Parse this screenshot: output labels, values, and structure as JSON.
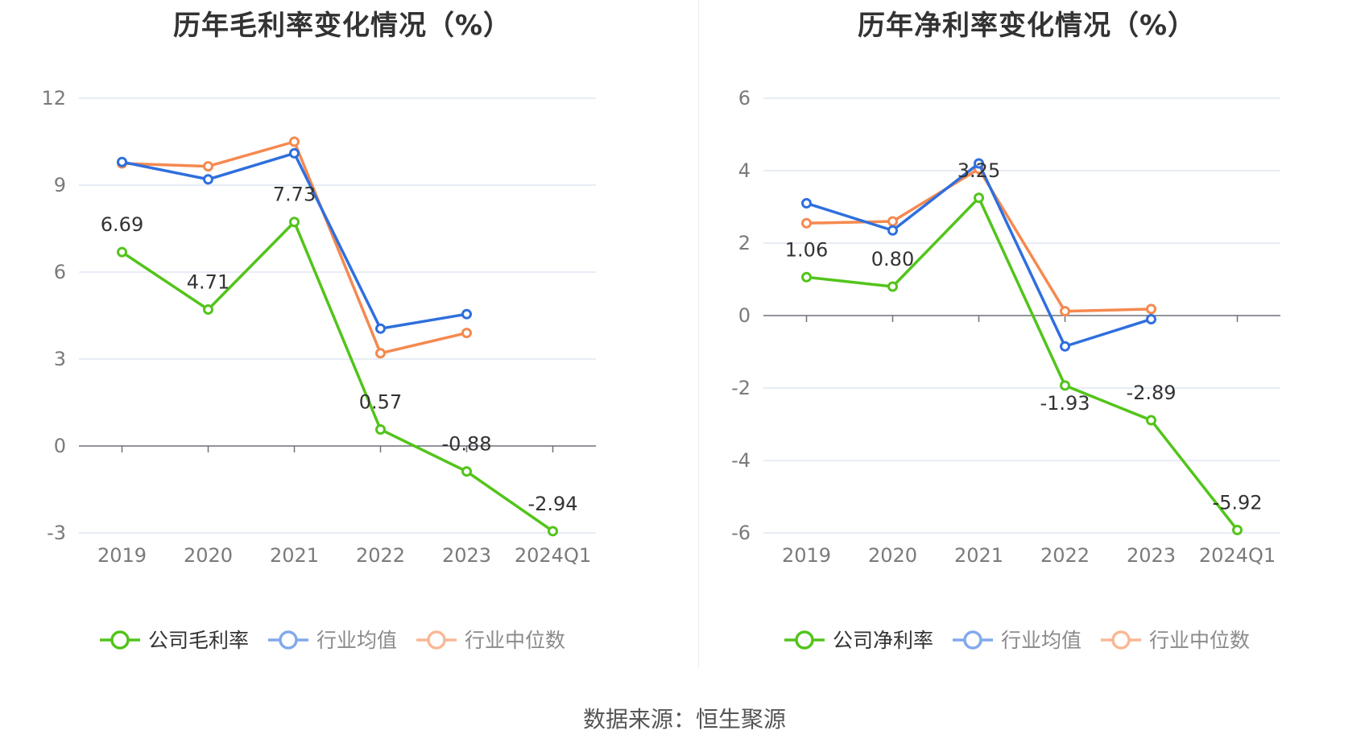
{
  "source": "数据来源：恒生聚源",
  "charts": [
    {
      "id": "gross",
      "chart_data": {
        "type": "line",
        "title": "历年毛利率变化情况（%）",
        "categories": [
          "2019",
          "2020",
          "2021",
          "2022",
          "2023",
          "2024Q1"
        ],
        "ylim": [
          -3,
          12
        ],
        "yticks": [
          -3,
          0,
          3,
          6,
          9,
          12
        ],
        "grid": true,
        "legend_position": "bottom",
        "series": [
          {
            "name": "公司毛利率",
            "color": "#52c41a",
            "values": [
              6.69,
              4.71,
              7.73,
              0.57,
              -0.88,
              -2.94
            ],
            "labels": [
              "6.69",
              "4.71",
              "7.73",
              "0.57",
              "-0.88",
              "-2.94"
            ]
          },
          {
            "name": "行业均值",
            "color": "#2f6fde",
            "values": [
              9.8,
              9.2,
              10.1,
              4.05,
              4.55,
              null
            ]
          },
          {
            "name": "行业中位数",
            "color": "#f5894f",
            "values": [
              9.75,
              9.65,
              10.5,
              3.2,
              3.9,
              null
            ]
          }
        ]
      }
    },
    {
      "id": "net",
      "chart_data": {
        "type": "line",
        "title": "历年净利率变化情况（%）",
        "categories": [
          "2019",
          "2020",
          "2021",
          "2022",
          "2023",
          "2024Q1"
        ],
        "ylim": [
          -6,
          6
        ],
        "yticks": [
          -6,
          -4,
          -2,
          0,
          2,
          4,
          6
        ],
        "grid": true,
        "legend_position": "bottom",
        "series": [
          {
            "name": "公司净利率",
            "color": "#52c41a",
            "values": [
              1.06,
              0.8,
              3.25,
              -1.93,
              -2.89,
              -5.92
            ],
            "labels": [
              "1.06",
              "0.80",
              "3.25",
              "-1.93",
              "-2.89",
              "-5.92"
            ]
          },
          {
            "name": "行业均值",
            "color": "#2f6fde",
            "values": [
              3.1,
              2.35,
              4.2,
              -0.85,
              -0.1,
              null
            ]
          },
          {
            "name": "行业中位数",
            "color": "#f5894f",
            "values": [
              2.55,
              2.6,
              4.05,
              0.12,
              0.18,
              null
            ]
          }
        ]
      }
    }
  ]
}
